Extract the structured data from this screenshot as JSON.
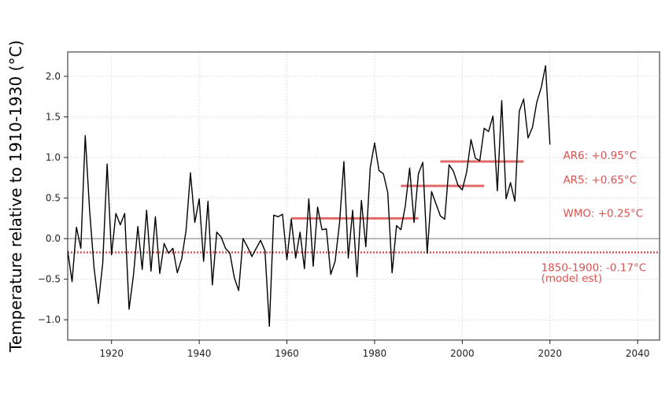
{
  "chart_data": {
    "type": "line",
    "title": "",
    "xlabel": "",
    "ylabel": "Temperature relative to 1910-1930 (°C)",
    "xlim": [
      1910,
      2045
    ],
    "ylim": [
      -1.25,
      2.3
    ],
    "xticks": [
      1920,
      1940,
      1960,
      1980,
      2000,
      2020,
      2040
    ],
    "yticks": [
      -1.0,
      -0.5,
      0.0,
      0.5,
      1.0,
      1.5,
      2.0
    ],
    "ytick_labels": [
      "−1.0",
      "−0.5",
      "0.0",
      "0.5",
      "1.0",
      "1.5",
      "2.0"
    ],
    "grid": true,
    "series": [
      {
        "color": "#000000",
        "x": [
          1910,
          1911,
          1912,
          1913,
          1914,
          1915,
          1916,
          1917,
          1918,
          1919,
          1920,
          1921,
          1922,
          1923,
          1924,
          1925,
          1926,
          1927,
          1928,
          1929,
          1930,
          1931,
          1932,
          1933,
          1934,
          1935,
          1936,
          1937,
          1938,
          1939,
          1940,
          1941,
          1942,
          1943,
          1944,
          1945,
          1946,
          1947,
          1948,
          1949,
          1950,
          1951,
          1952,
          1953,
          1954,
          1955,
          1956,
          1957,
          1958,
          1959,
          1960,
          1961,
          1962,
          1963,
          1964,
          1965,
          1966,
          1967,
          1968,
          1969,
          1970,
          1971,
          1972,
          1973,
          1974,
          1975,
          1976,
          1977,
          1978,
          1979,
          1980,
          1981,
          1982,
          1983,
          1984,
          1985,
          1986,
          1987,
          1988,
          1989,
          1990,
          1991,
          1992,
          1993,
          1994,
          1995,
          1996,
          1997,
          1998,
          1999,
          2000,
          2001,
          2002,
          2003,
          2004,
          2005,
          2006,
          2007,
          2008,
          2009,
          2010,
          2011,
          2012,
          2013,
          2014,
          2015,
          2016,
          2017,
          2018,
          2019,
          2020
        ],
        "values": [
          -0.15,
          -0.53,
          0.14,
          -0.12,
          1.27,
          0.35,
          -0.35,
          -0.8,
          -0.3,
          0.92,
          -0.2,
          0.31,
          0.17,
          0.31,
          -0.87,
          -0.45,
          0.15,
          -0.38,
          0.35,
          -0.4,
          0.27,
          -0.43,
          -0.06,
          -0.18,
          -0.12,
          -0.42,
          -0.25,
          0.1,
          0.81,
          0.2,
          0.49,
          -0.28,
          0.46,
          -0.57,
          0.08,
          0.02,
          -0.12,
          -0.18,
          -0.48,
          -0.64,
          0.0,
          -0.1,
          -0.22,
          -0.12,
          -0.02,
          -0.15,
          -1.08,
          0.29,
          0.27,
          0.3,
          -0.26,
          0.24,
          -0.24,
          0.08,
          -0.37,
          0.49,
          -0.34,
          0.39,
          0.11,
          0.12,
          -0.44,
          -0.28,
          0.19,
          0.95,
          -0.24,
          0.35,
          -0.47,
          0.47,
          -0.1,
          0.87,
          1.18,
          0.84,
          0.8,
          0.57,
          -0.42,
          0.16,
          0.11,
          0.4,
          0.87,
          0.2,
          0.8,
          0.94,
          -0.18,
          0.58,
          0.43,
          0.28,
          0.24,
          0.91,
          0.83,
          0.66,
          0.6,
          0.82,
          1.22,
          0.99,
          0.96,
          1.36,
          1.32,
          1.51,
          0.59,
          1.7,
          0.49,
          0.69,
          0.46,
          1.57,
          1.72,
          1.24,
          1.37,
          1.68,
          1.86,
          2.13,
          1.16
        ]
      }
    ],
    "reference_lines": [
      {
        "type": "hline",
        "y": 0.0,
        "color": "#777777",
        "style": "solid"
      },
      {
        "type": "hline",
        "y": -0.17,
        "color": "#e05555",
        "style": "dotted"
      }
    ],
    "period_means": [
      {
        "label": "WMO: +0.25°C",
        "x0": 1961,
        "x1": 1990,
        "y": 0.25,
        "color": "#e06a6a"
      },
      {
        "label": "AR5: +0.65°C",
        "x0": 1986,
        "x1": 2005,
        "y": 0.65,
        "color": "#e06a6a"
      },
      {
        "label": "AR6: +0.95°C",
        "x0": 1995,
        "x1": 2014,
        "y": 0.95,
        "color": "#e06a6a"
      }
    ],
    "annotations": [
      {
        "text": "AR6: +0.95°C",
        "x": 2023,
        "y": 0.98,
        "color": "#d9534f"
      },
      {
        "text": "AR5: +0.65°C",
        "x": 2023,
        "y": 0.68,
        "color": "#d9534f"
      },
      {
        "text": "WMO: +0.25°C",
        "x": 2023,
        "y": 0.27,
        "color": "#d9534f"
      },
      {
        "text": "1850-1900: -0.17°C",
        "x": 2018,
        "y": -0.4,
        "color": "#d9534f"
      },
      {
        "text": "(model est)",
        "x": 2018,
        "y": -0.53,
        "color": "#d9534f"
      }
    ]
  }
}
